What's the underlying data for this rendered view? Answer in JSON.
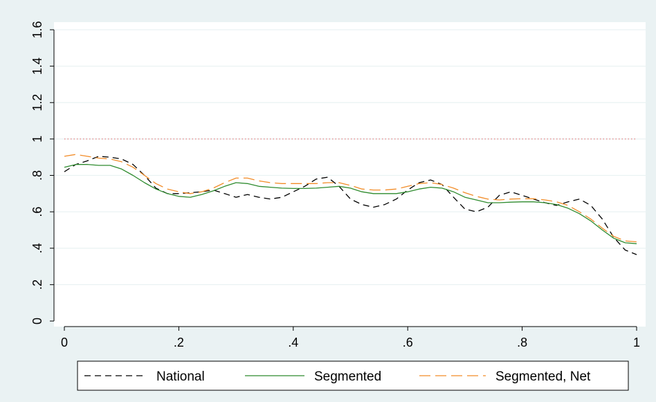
{
  "chart_data": {
    "type": "line",
    "title": "",
    "xlabel": "",
    "ylabel": "",
    "xlim": [
      0,
      1
    ],
    "ylim": [
      0,
      1.6
    ],
    "x_ticks": [
      {
        "value": 0,
        "label": "0"
      },
      {
        "value": 0.2,
        "label": ".2"
      },
      {
        "value": 0.4,
        "label": ".4"
      },
      {
        "value": 0.6,
        "label": ".6"
      },
      {
        "value": 0.8,
        "label": ".8"
      },
      {
        "value": 1,
        "label": "1"
      }
    ],
    "y_ticks": [
      {
        "value": 0,
        "label": "0"
      },
      {
        "value": 0.2,
        "label": ".2"
      },
      {
        "value": 0.4,
        "label": ".4"
      },
      {
        "value": 0.6,
        "label": ".6"
      },
      {
        "value": 0.8,
        "label": ".8"
      },
      {
        "value": 1,
        "label": "1"
      },
      {
        "value": 1.2,
        "label": "1.2"
      },
      {
        "value": 1.4,
        "label": "1.4"
      },
      {
        "value": 1.6,
        "label": "1.6"
      }
    ],
    "grid": true,
    "reference_line": {
      "y": 1.0,
      "color": "#e06060",
      "style": "dotted"
    },
    "legend_position": "bottom",
    "series": [
      {
        "name": "National",
        "color": "#000000",
        "dash": "9,6",
        "x": [
          0.0,
          0.02,
          0.04,
          0.06,
          0.08,
          0.1,
          0.12,
          0.14,
          0.16,
          0.18,
          0.2,
          0.22,
          0.24,
          0.26,
          0.28,
          0.3,
          0.32,
          0.34,
          0.36,
          0.38,
          0.4,
          0.42,
          0.44,
          0.46,
          0.48,
          0.5,
          0.52,
          0.54,
          0.56,
          0.58,
          0.6,
          0.62,
          0.64,
          0.66,
          0.68,
          0.7,
          0.72,
          0.74,
          0.76,
          0.78,
          0.8,
          0.82,
          0.84,
          0.86,
          0.88,
          0.9,
          0.92,
          0.94,
          0.96,
          0.98,
          1.0
        ],
        "y": [
          0.82,
          0.86,
          0.88,
          0.905,
          0.9,
          0.89,
          0.86,
          0.8,
          0.73,
          0.7,
          0.7,
          0.705,
          0.71,
          0.72,
          0.7,
          0.68,
          0.695,
          0.68,
          0.67,
          0.68,
          0.71,
          0.74,
          0.78,
          0.79,
          0.74,
          0.67,
          0.64,
          0.625,
          0.64,
          0.67,
          0.72,
          0.76,
          0.775,
          0.75,
          0.68,
          0.615,
          0.6,
          0.625,
          0.69,
          0.71,
          0.69,
          0.67,
          0.65,
          0.635,
          0.655,
          0.67,
          0.635,
          0.56,
          0.46,
          0.39,
          0.365
        ]
      },
      {
        "name": "Segmented",
        "color": "#2e8b2e",
        "dash": "",
        "x": [
          0.0,
          0.02,
          0.04,
          0.06,
          0.08,
          0.1,
          0.12,
          0.14,
          0.16,
          0.18,
          0.2,
          0.22,
          0.24,
          0.26,
          0.28,
          0.3,
          0.32,
          0.34,
          0.36,
          0.38,
          0.4,
          0.42,
          0.44,
          0.46,
          0.48,
          0.5,
          0.52,
          0.54,
          0.56,
          0.58,
          0.6,
          0.62,
          0.64,
          0.66,
          0.68,
          0.7,
          0.72,
          0.74,
          0.76,
          0.78,
          0.8,
          0.82,
          0.84,
          0.86,
          0.88,
          0.9,
          0.92,
          0.94,
          0.96,
          0.98,
          1.0
        ],
        "y": [
          0.845,
          0.86,
          0.86,
          0.855,
          0.855,
          0.835,
          0.8,
          0.76,
          0.725,
          0.7,
          0.685,
          0.68,
          0.695,
          0.715,
          0.74,
          0.76,
          0.755,
          0.74,
          0.735,
          0.73,
          0.728,
          0.728,
          0.73,
          0.735,
          0.74,
          0.73,
          0.71,
          0.7,
          0.7,
          0.7,
          0.71,
          0.725,
          0.735,
          0.73,
          0.71,
          0.68,
          0.665,
          0.65,
          0.65,
          0.653,
          0.655,
          0.655,
          0.65,
          0.64,
          0.62,
          0.59,
          0.55,
          0.5,
          0.455,
          0.43,
          0.425
        ]
      },
      {
        "name": "Segmented, Net",
        "color": "#f28c28",
        "dash": "16,7",
        "x": [
          0.0,
          0.02,
          0.04,
          0.06,
          0.08,
          0.1,
          0.12,
          0.14,
          0.16,
          0.18,
          0.2,
          0.22,
          0.24,
          0.26,
          0.28,
          0.3,
          0.32,
          0.34,
          0.36,
          0.38,
          0.4,
          0.42,
          0.44,
          0.46,
          0.48,
          0.5,
          0.52,
          0.54,
          0.56,
          0.58,
          0.6,
          0.62,
          0.64,
          0.66,
          0.68,
          0.7,
          0.72,
          0.74,
          0.76,
          0.78,
          0.8,
          0.82,
          0.84,
          0.86,
          0.88,
          0.9,
          0.92,
          0.94,
          0.96,
          0.98,
          1.0
        ],
        "y": [
          0.905,
          0.915,
          0.905,
          0.895,
          0.89,
          0.875,
          0.845,
          0.8,
          0.755,
          0.725,
          0.71,
          0.7,
          0.71,
          0.73,
          0.76,
          0.785,
          0.785,
          0.77,
          0.76,
          0.755,
          0.755,
          0.755,
          0.755,
          0.76,
          0.76,
          0.745,
          0.725,
          0.72,
          0.72,
          0.725,
          0.74,
          0.755,
          0.76,
          0.75,
          0.73,
          0.705,
          0.685,
          0.67,
          0.665,
          0.67,
          0.672,
          0.672,
          0.665,
          0.655,
          0.635,
          0.6,
          0.56,
          0.51,
          0.465,
          0.44,
          0.435
        ]
      }
    ]
  }
}
